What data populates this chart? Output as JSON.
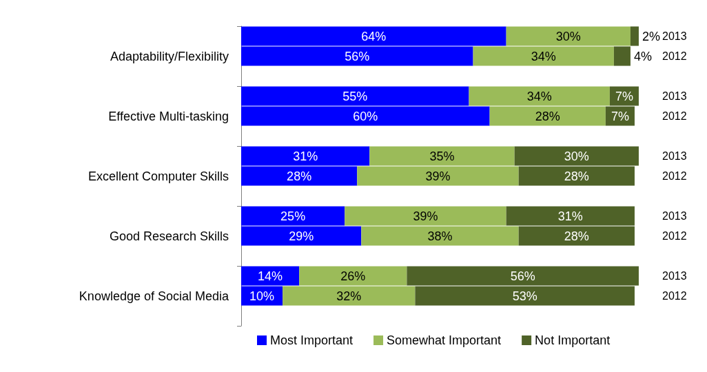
{
  "chart_data": {
    "type": "bar",
    "orientation": "horizontal",
    "stacked": true,
    "legend": "bottom",
    "tick_labels": "y",
    "categories": [
      "2013",
      "2012",
      "2013",
      "2012",
      "2013",
      "2012",
      "2013",
      "2012",
      "2013",
      "2012"
    ],
    "annotations": [
      "Adaptability/Flexibility",
      "Effective Multi-tasking",
      "Excellent Computer Skills",
      "Good Research Skills",
      "Knowledge of Social Media"
    ],
    "series": [
      {
        "name": "Most Important",
        "color": "#0000ff",
        "values": [
          64,
          56,
          55,
          60,
          31,
          28,
          25,
          29,
          14,
          10
        ],
        "value_labels": [
          "64%",
          "56%",
          "55%",
          "60%",
          "31%",
          "28%",
          "25%",
          "29%",
          "14%",
          "10%"
        ]
      },
      {
        "name": "Somewhat Important",
        "color": "#9bbb59",
        "values": [
          30,
          34,
          34,
          28,
          35,
          39,
          39,
          38,
          26,
          32
        ],
        "value_labels": [
          "30%",
          "34%",
          "34%",
          "28%",
          "35%",
          "39%",
          "39%",
          "38%",
          "26%",
          "32%"
        ]
      },
      {
        "name": "Not Important",
        "color": "#4f6228",
        "values": [
          2,
          4,
          7,
          7,
          30,
          28,
          31,
          28,
          56,
          53
        ],
        "value_labels": [
          "2%",
          "4%",
          "7%",
          "7%",
          "30%",
          "28%",
          "31%",
          "28%",
          "56%",
          "53%"
        ]
      }
    ]
  }
}
